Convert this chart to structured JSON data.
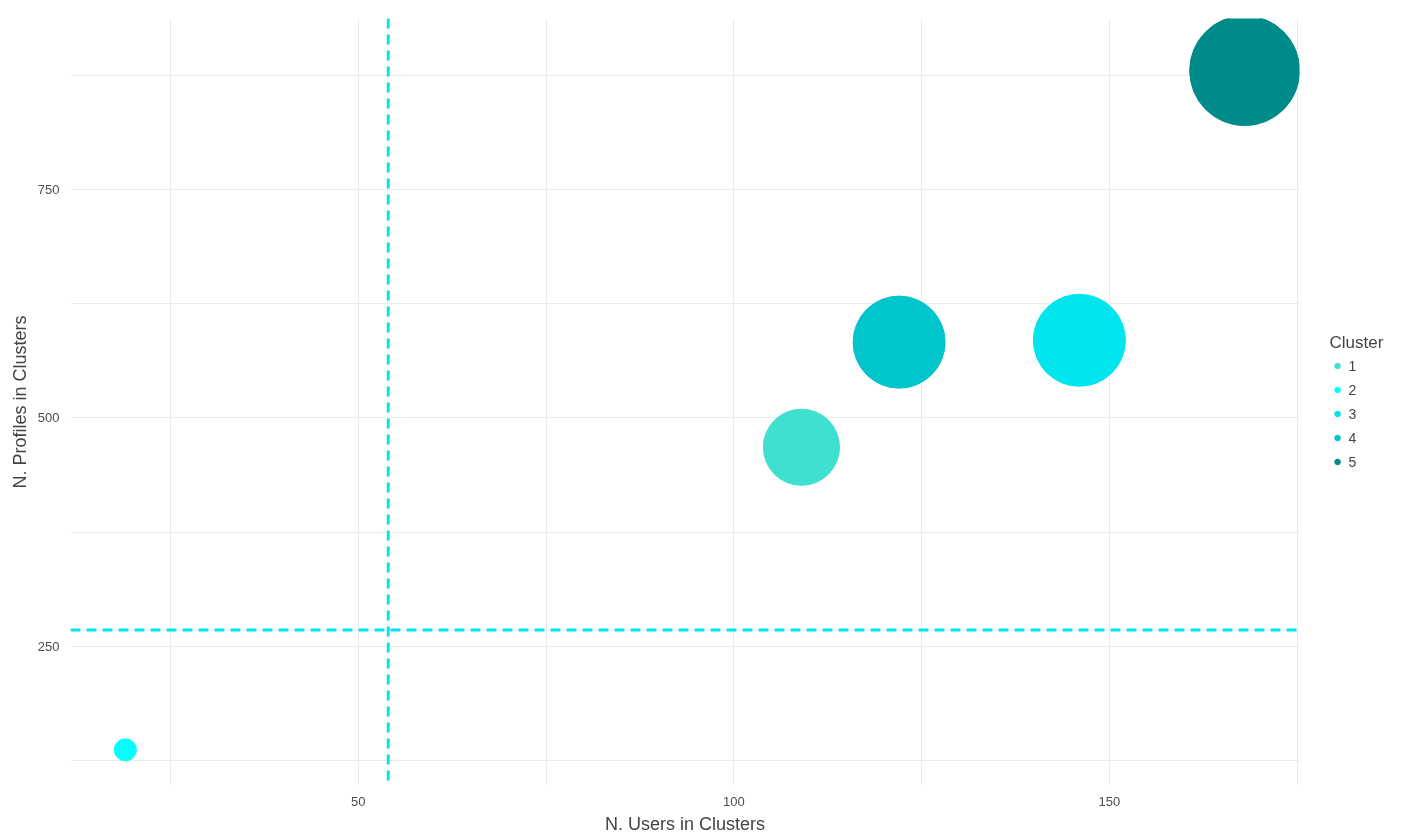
{
  "chart_data": {
    "type": "bubble",
    "xlabel": "N. Users in Clusters",
    "ylabel": "N. Profiles in Clusters",
    "legend_title": "Cluster",
    "series": [
      {
        "name": "1",
        "color": "#40e0d0",
        "x": [
          109
        ],
        "values": [
          468
        ],
        "sizes": [
          0.48
        ]
      },
      {
        "name": "2",
        "color": "#00ffff",
        "x": [
          19
        ],
        "values": [
          137
        ],
        "sizes": [
          0.04
        ]
      },
      {
        "name": "3",
        "color": "#00e5ee",
        "x": [
          146
        ],
        "values": [
          585
        ],
        "sizes": [
          0.7
        ]
      },
      {
        "name": "4",
        "color": "#00c5cd",
        "x": [
          122
        ],
        "values": [
          583
        ],
        "sizes": [
          0.7
        ]
      },
      {
        "name": "5",
        "color": "#008b8b",
        "x": [
          168
        ],
        "values": [
          880
        ],
        "sizes": [
          1
        ]
      }
    ],
    "xlim": [
      11.7,
      175.3
    ],
    "ylim": [
      98,
      937
    ],
    "xticks": [
      {
        "value": 25,
        "label": null
      },
      50,
      {
        "value": 75,
        "label": null
      },
      100,
      {
        "value": 125,
        "label": null
      },
      150,
      {
        "value": 175,
        "label": null
      }
    ],
    "yticks": [
      {
        "value": 125,
        "label": null
      },
      250,
      {
        "value": 375,
        "label": null
      },
      500,
      {
        "value": 625,
        "label": null
      },
      750,
      {
        "value": 875,
        "label": null
      }
    ],
    "ref_lines": [
      {
        "axis": "x",
        "value": 54,
        "color": "#00e5ee",
        "line_style": "dashed"
      },
      {
        "axis": "y",
        "value": 268,
        "color": "#00e5ee",
        "line_style": "dashed"
      }
    ],
    "grid": true,
    "legend": "right",
    "marker": "circle"
  }
}
